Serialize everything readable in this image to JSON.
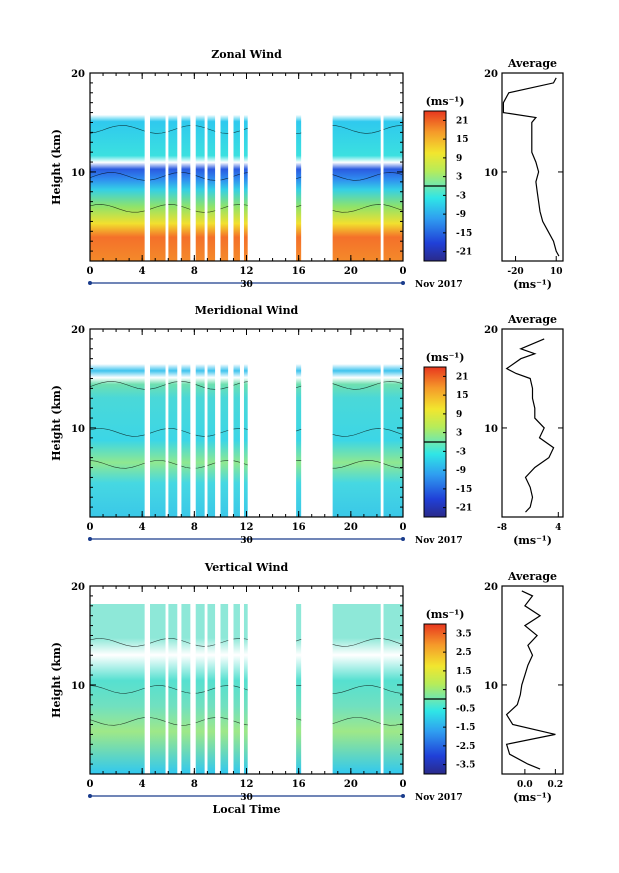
{
  "chart_data": [
    {
      "type": "heatmap",
      "title": "Zonal Wind",
      "ylabel": "Height (km)",
      "x_ticks": [
        "0",
        "4",
        "8",
        "12",
        "16",
        "20",
        "0"
      ],
      "y_ticks": [
        "10",
        "20"
      ],
      "date_label": "30",
      "month_label": "Nov 2017",
      "xlim_hours": [
        0,
        24
      ],
      "ylim_km": [
        1,
        20
      ],
      "colorbar": {
        "unit": "(ms⁻¹)",
        "ticks": [
          "21",
          "15",
          "9",
          "3",
          "-3",
          "-9",
          "-15",
          "-21"
        ],
        "range": [
          -24,
          24
        ]
      },
      "data_gaps_hours": [
        [
          4.2,
          4.6
        ],
        [
          5.8,
          6.0
        ],
        [
          6.7,
          7.0
        ],
        [
          7.7,
          8.1
        ],
        [
          8.8,
          9.0
        ],
        [
          9.6,
          10.0
        ],
        [
          10.6,
          11.0
        ],
        [
          11.5,
          11.8
        ],
        [
          12.1,
          15.8
        ],
        [
          16.2,
          18.6
        ],
        [
          22.3,
          22.5
        ]
      ],
      "profile": {
        "title": "Average",
        "x_ticks": [
          "-20",
          "10"
        ],
        "xlim": [
          -30,
          15
        ],
        "xunit": "(ms⁻¹)",
        "y_ticks": [
          "10",
          "20"
        ],
        "height_km": [
          1.5,
          2,
          3,
          4,
          5,
          6,
          7,
          8,
          9,
          10,
          11,
          12,
          13,
          14,
          15,
          15.5,
          16,
          17,
          18,
          19,
          19.5
        ],
        "value": [
          12,
          10,
          8,
          4,
          0,
          -2,
          -3,
          -4,
          -5,
          -3,
          -5,
          -8,
          -8,
          -8,
          -8,
          -5,
          -29,
          -29,
          -25,
          8,
          10
        ]
      }
    },
    {
      "type": "heatmap",
      "title": "Meridional Wind",
      "ylabel": "Height (km)",
      "x_ticks": [
        "0",
        "4",
        "8",
        "12",
        "16",
        "20",
        "0"
      ],
      "y_ticks": [
        "10",
        "20"
      ],
      "date_label": "30",
      "month_label": "Nov 2017",
      "xlim_hours": [
        0,
        24
      ],
      "ylim_km": [
        1,
        20
      ],
      "colorbar": {
        "unit": "(ms⁻¹)",
        "ticks": [
          "21",
          "15",
          "9",
          "3",
          "-3",
          "-9",
          "-15",
          "-21"
        ],
        "range": [
          -24,
          24
        ]
      },
      "data_gaps_hours": [
        [
          4.2,
          4.6
        ],
        [
          5.8,
          6.0
        ],
        [
          6.7,
          7.0
        ],
        [
          7.7,
          8.1
        ],
        [
          8.8,
          9.0
        ],
        [
          9.6,
          10.0
        ],
        [
          10.6,
          11.0
        ],
        [
          11.5,
          11.8
        ],
        [
          12.1,
          15.8
        ],
        [
          16.2,
          18.6
        ],
        [
          22.3,
          22.5
        ]
      ],
      "profile": {
        "title": "Average",
        "x_ticks": [
          "-8",
          "4"
        ],
        "xlim": [
          -8,
          5
        ],
        "xunit": "(ms⁻¹)",
        "y_ticks": [
          "10",
          "20"
        ],
        "height_km": [
          1.5,
          2,
          3,
          4,
          5,
          6,
          7,
          8,
          9,
          10,
          11,
          12,
          13,
          14,
          15,
          15.5,
          16,
          17,
          17.5,
          18,
          19
        ],
        "value": [
          -3,
          -2,
          -1.5,
          -2,
          -3,
          -1,
          2,
          3,
          0,
          1,
          -1,
          -1,
          -1.5,
          -1.5,
          -2,
          -5,
          -7,
          -4,
          -1,
          -4,
          1
        ]
      }
    },
    {
      "type": "heatmap",
      "title": "Vertical Wind",
      "ylabel": "Height (km)",
      "xlabel": "Local Time",
      "x_ticks": [
        "0",
        "4",
        "8",
        "12",
        "16",
        "20",
        "0"
      ],
      "y_ticks": [
        "10",
        "20"
      ],
      "date_label": "30",
      "month_label": "Nov 2017",
      "xlim_hours": [
        0,
        24
      ],
      "ylim_km": [
        1,
        20
      ],
      "colorbar": {
        "unit": "(ms⁻¹)",
        "ticks": [
          "3.5",
          "2.5",
          "1.5",
          "0.5",
          "-0.5",
          "-1.5",
          "-2.5",
          "-3.5"
        ],
        "range": [
          -4,
          4
        ]
      },
      "data_gaps_hours": [
        [
          4.2,
          4.6
        ],
        [
          5.8,
          6.0
        ],
        [
          6.7,
          7.0
        ],
        [
          7.7,
          8.1
        ],
        [
          8.8,
          9.0
        ],
        [
          9.6,
          10.0
        ],
        [
          10.6,
          11.0
        ],
        [
          11.5,
          11.8
        ],
        [
          12.1,
          15.8
        ],
        [
          16.2,
          18.6
        ],
        [
          22.3,
          22.5
        ]
      ],
      "profile": {
        "title": "Average",
        "x_ticks": [
          "0.0",
          "0.2"
        ],
        "xlim": [
          -0.15,
          0.25
        ],
        "xunit": "(ms⁻¹)",
        "y_ticks": [
          "10",
          "20"
        ],
        "height_km": [
          1.5,
          2,
          3,
          4,
          5,
          6,
          7,
          8,
          9,
          10,
          11,
          12,
          13,
          14,
          15,
          16,
          17,
          18,
          19,
          19.5
        ],
        "value": [
          0.1,
          0.02,
          -0.1,
          -0.12,
          0.2,
          -0.08,
          -0.12,
          -0.05,
          -0.03,
          -0.02,
          0.0,
          0.02,
          0.05,
          0.02,
          0.08,
          0.0,
          0.1,
          0.0,
          0.05,
          -0.02
        ]
      }
    }
  ]
}
